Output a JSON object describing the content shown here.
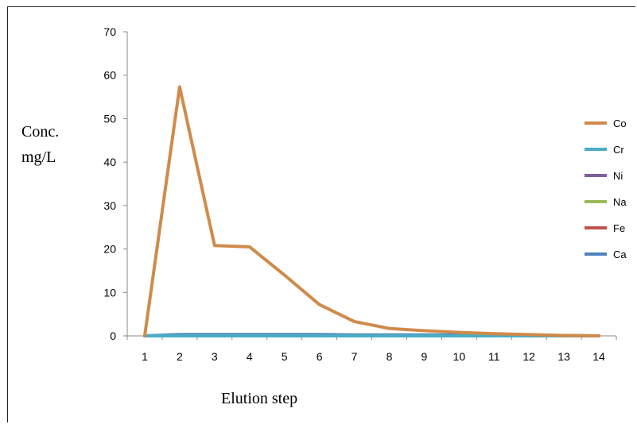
{
  "chart_data": {
    "type": "line",
    "title": "",
    "xlabel": "Elution step",
    "ylabel_lines": [
      "Conc.",
      "mg/L"
    ],
    "categories": [
      "1",
      "2",
      "3",
      "4",
      "5",
      "6",
      "7",
      "8",
      "9",
      "10",
      "11",
      "12",
      "13",
      "14"
    ],
    "ylim": [
      0,
      70
    ],
    "yticks": [
      0,
      10,
      20,
      30,
      40,
      50,
      60,
      70
    ],
    "grid": false,
    "legend_position": "right",
    "series": [
      {
        "name": "Co",
        "color": "#d08a4a",
        "values": [
          0,
          57.3,
          20.8,
          20.5,
          14,
          7.2,
          3.3,
          1.7,
          1.2,
          0.8,
          0.5,
          0.3,
          0.1,
          0
        ]
      },
      {
        "name": "Cr",
        "color": "#4bacc6",
        "values": [
          0,
          0,
          0,
          0,
          0,
          0,
          0,
          0,
          0,
          0,
          0,
          0,
          0,
          0
        ]
      },
      {
        "name": "Ni",
        "color": "#7f5fa0",
        "values": [
          0,
          0,
          0,
          0,
          0,
          0,
          0,
          0,
          0,
          0,
          0,
          0,
          0,
          0
        ]
      },
      {
        "name": "Na",
        "color": "#9bbb59",
        "values": [
          0,
          0,
          0,
          0,
          0,
          0,
          0,
          0,
          0,
          0,
          0,
          0,
          0,
          0
        ]
      },
      {
        "name": "Fe",
        "color": "#c0504d",
        "values": [
          0,
          0,
          0,
          0,
          0,
          0,
          0,
          0,
          0,
          0,
          0,
          0,
          0,
          0
        ]
      },
      {
        "name": "Ca",
        "color": "#4f81bd",
        "values": [
          0,
          0.3,
          0.3,
          0.3,
          0.3,
          0.3,
          0.2,
          0.2,
          0.2,
          0.2,
          0.2,
          0.1,
          0.1,
          0
        ]
      }
    ]
  }
}
